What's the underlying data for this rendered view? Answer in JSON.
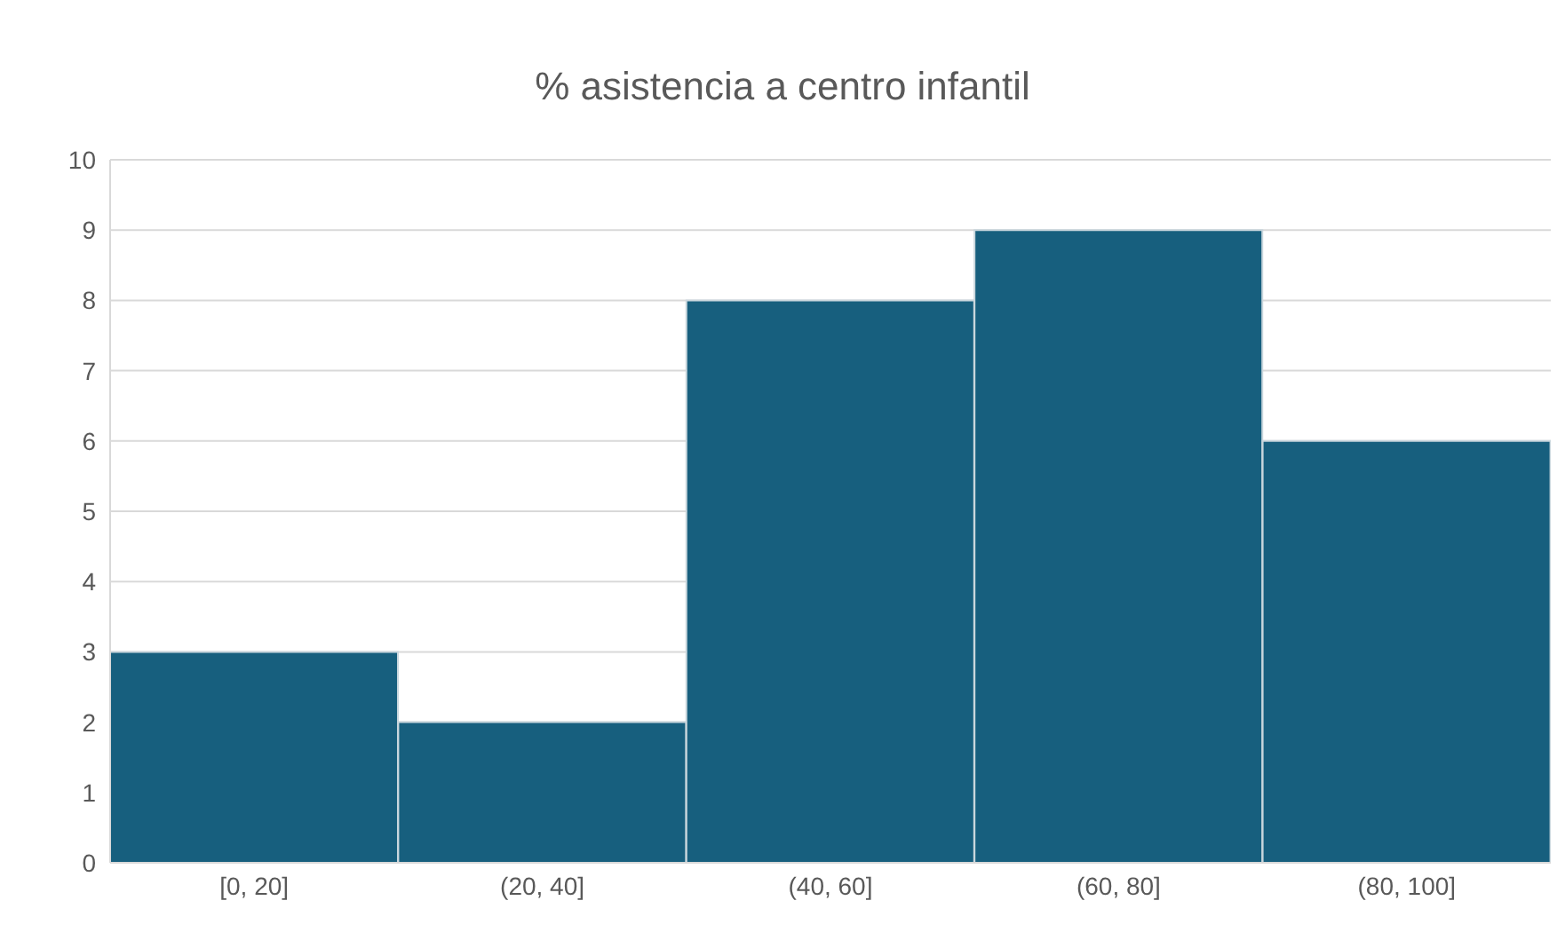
{
  "chart_data": {
    "type": "bar",
    "title": "% asistencia a centro infantil",
    "categories": [
      "[0, 20]",
      "(20, 40]",
      "(40, 60]",
      "(60, 80]",
      "(80, 100]"
    ],
    "values": [
      3,
      2,
      8,
      9,
      6
    ],
    "color": "#175f7e",
    "ylim": [
      0,
      10
    ],
    "yticks": [
      0,
      1,
      2,
      3,
      4,
      5,
      6,
      7,
      8,
      9,
      10
    ],
    "grid": "y"
  }
}
